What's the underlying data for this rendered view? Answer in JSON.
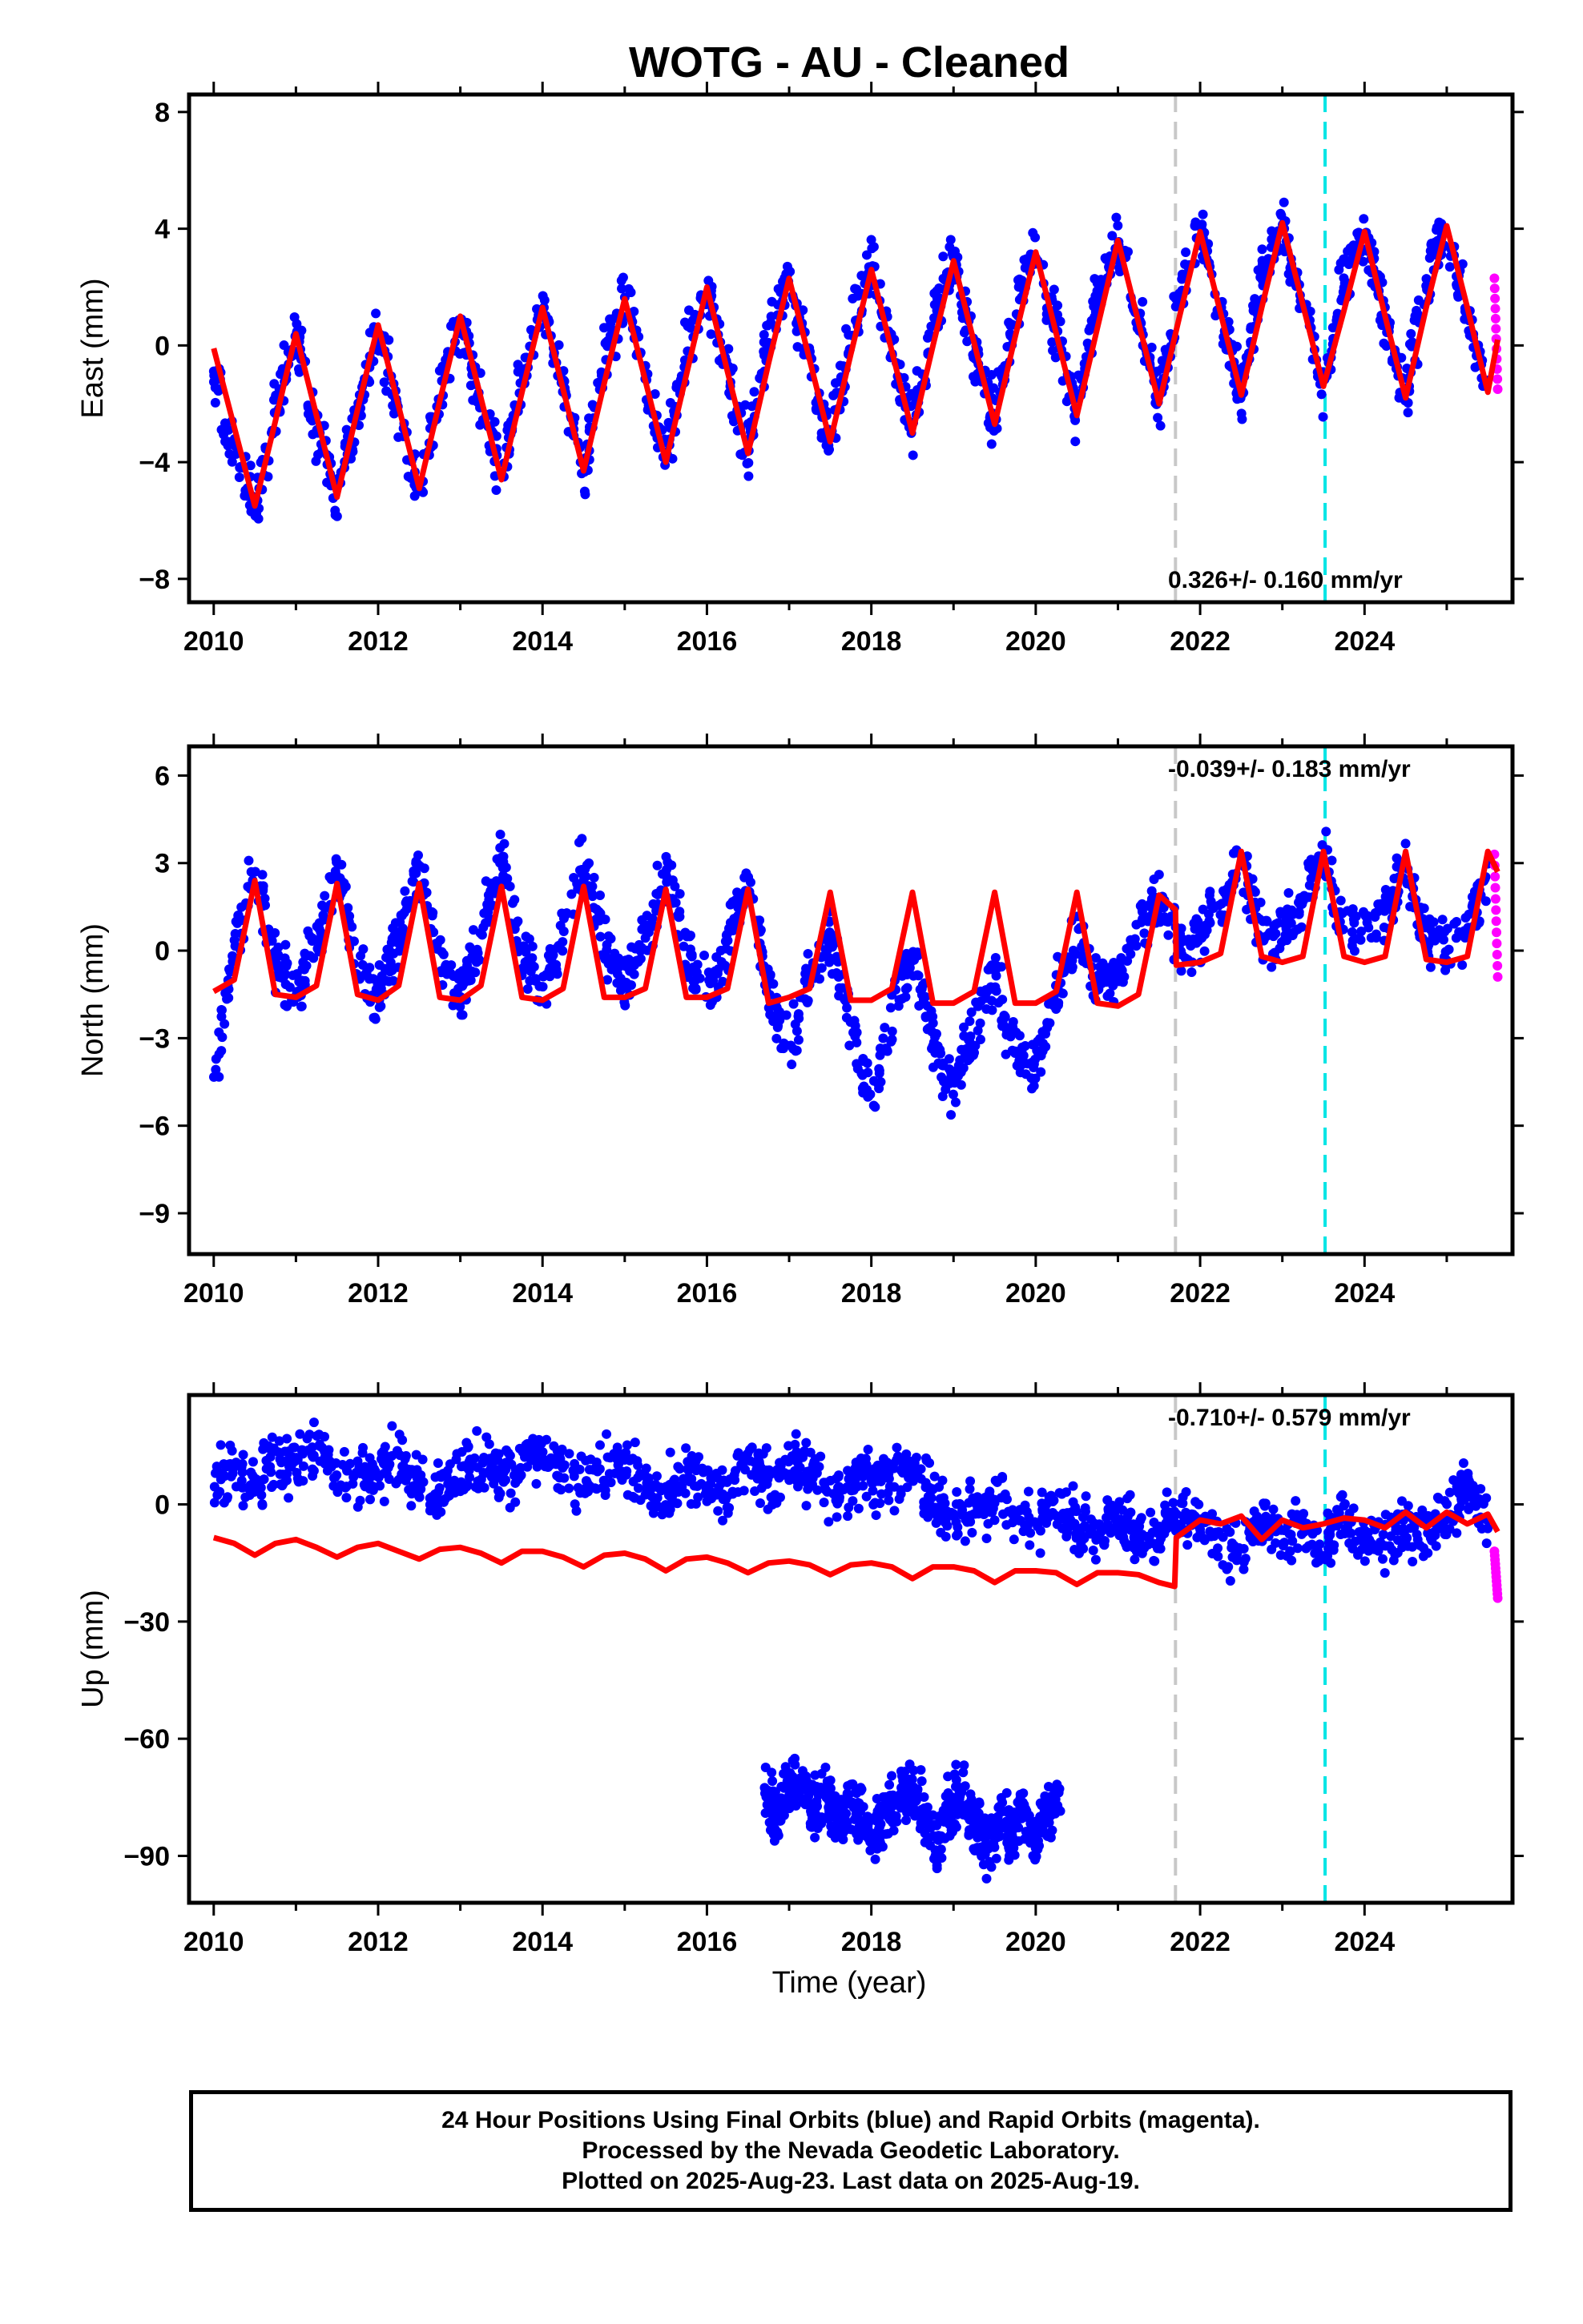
{
  "title": "WOTG  - AU - Cleaned",
  "x_axis": {
    "label": "Time (year)",
    "range": [
      2009.7,
      2025.8
    ],
    "ticks": [
      2010,
      2012,
      2014,
      2016,
      2018,
      2020,
      2022,
      2024
    ],
    "tick_labels": [
      "2010",
      "2012",
      "2014",
      "2016",
      "2018",
      "2020",
      "2022",
      "2024"
    ]
  },
  "colors": {
    "final_orbits": "#0000ff",
    "rapid_orbits": "#ff00ff",
    "model": "#ff0000",
    "gray_line": "#c8c8c8",
    "cyan_line": "#00e5e5"
  },
  "footer": {
    "line1": "24 Hour Positions Using Final Orbits (blue) and Rapid Orbits (magenta).",
    "line2": "Processed by the Nevada Geodetic Laboratory.",
    "line3": "Plotted on 2025-Aug-23. Last data on 2025-Aug-19."
  },
  "chart_data": [
    {
      "type": "scatter",
      "panel": "east",
      "ylabel": "East (mm)",
      "ylim": [
        -8.8,
        8.6
      ],
      "yticks": [
        -8,
        -4,
        0,
        4,
        8
      ],
      "ytick_labels": [
        "−8",
        "−4",
        "0",
        "4",
        "8"
      ],
      "rate_text": "0.326+/- 0.160 mm/yr",
      "rate_position": "bottom-right",
      "vertical_lines": [
        {
          "x": 2021.7,
          "color": "gray"
        },
        {
          "x": 2023.52,
          "color": "cyan"
        }
      ],
      "series": [
        {
          "role": "final_orbits",
          "x": [
            2010.0,
            2010.25,
            2010.5,
            2010.75,
            2011.0,
            2011.25,
            2011.5,
            2011.75,
            2012.0,
            2012.25,
            2012.5,
            2012.75,
            2013.0,
            2013.25,
            2013.5,
            2013.75,
            2014.0,
            2014.25,
            2014.5,
            2014.75,
            2015.0,
            2015.25,
            2015.5,
            2015.75,
            2016.0,
            2016.25,
            2016.5,
            2016.75,
            2017.0,
            2017.25,
            2017.5,
            2017.75,
            2018.0,
            2018.25,
            2018.5,
            2018.75,
            2019.0,
            2019.25,
            2019.5,
            2019.75,
            2020.0,
            2020.25,
            2020.5,
            2020.75,
            2021.0,
            2021.25,
            2021.5,
            2021.75,
            2022.0,
            2022.25,
            2022.5,
            2022.75,
            2023.0,
            2023.25,
            2023.5,
            2023.75,
            2024.0,
            2024.25,
            2024.5,
            2024.75,
            2025.0,
            2025.25,
            2025.5
          ],
          "y": [
            -0.8,
            -3.9,
            -5.6,
            -2.3,
            0.4,
            -2.8,
            -5.2,
            -1.9,
            0.6,
            -2.6,
            -4.9,
            -1.6,
            1.0,
            -2.1,
            -4.6,
            -1.0,
            1.4,
            -1.6,
            -4.3,
            -0.6,
            1.7,
            -1.3,
            -3.9,
            -0.2,
            2.0,
            -0.9,
            -3.6,
            0.3,
            2.3,
            -0.7,
            -3.3,
            0.6,
            2.7,
            -0.4,
            -2.9,
            1.0,
            3.0,
            -0.1,
            -2.7,
            1.4,
            3.3,
            0.5,
            -2.3,
            1.7,
            3.6,
            0.9,
            -2.0,
            2.0,
            3.9,
            1.1,
            -1.8,
            2.3,
            4.2,
            1.4,
            -1.6,
            2.3,
            3.8,
            1.1,
            -1.9,
            2.5,
            4.1,
            1.0,
            -1.5
          ]
        },
        {
          "role": "rapid_orbits",
          "x": [
            2025.58,
            2025.6,
            2025.62
          ],
          "y": [
            2.3,
            0.5,
            -1.5
          ]
        },
        {
          "role": "model",
          "x": [
            2010.0,
            2010.25,
            2010.5,
            2010.75,
            2011.0,
            2011.25,
            2011.5,
            2011.75,
            2012.0,
            2012.25,
            2012.5,
            2012.75,
            2013.0,
            2013.25,
            2013.5,
            2013.75,
            2014.0,
            2014.25,
            2014.5,
            2014.75,
            2015.0,
            2015.25,
            2015.5,
            2015.75,
            2016.0,
            2016.25,
            2016.5,
            2016.75,
            2017.0,
            2017.25,
            2017.5,
            2017.75,
            2018.0,
            2018.25,
            2018.5,
            2018.75,
            2019.0,
            2019.25,
            2019.5,
            2019.75,
            2020.0,
            2020.25,
            2020.5,
            2020.75,
            2021.0,
            2021.25,
            2021.5,
            2021.75,
            2022.0,
            2022.25,
            2022.5,
            2022.75,
            2023.0,
            2023.25,
            2023.5,
            2023.75,
            2024.0,
            2024.25,
            2024.5,
            2024.75,
            2025.0,
            2025.25,
            2025.5,
            2025.62
          ],
          "y": [
            -0.1,
            -2.8,
            -5.5,
            -2.6,
            0.4,
            -2.4,
            -5.2,
            -2.2,
            0.7,
            -2.1,
            -4.9,
            -1.9,
            1.0,
            -1.8,
            -4.6,
            -1.6,
            1.3,
            -1.5,
            -4.3,
            -1.3,
            1.6,
            -1.2,
            -4.0,
            -1.0,
            2.0,
            -0.9,
            -3.7,
            -0.6,
            2.3,
            -0.5,
            -3.3,
            -0.3,
            2.6,
            -0.2,
            -3.0,
            0.0,
            2.9,
            0.1,
            -2.7,
            0.3,
            3.2,
            0.4,
            -2.4,
            0.6,
            3.6,
            0.8,
            -2.0,
            1.0,
            3.9,
            1.1,
            -1.7,
            1.3,
            4.2,
            1.4,
            -1.4,
            1.2,
            3.9,
            1.0,
            -1.8,
            1.3,
            4.1,
            1.3,
            -1.6,
            0.2
          ]
        }
      ]
    },
    {
      "type": "scatter",
      "panel": "north",
      "ylabel": "North (mm)",
      "ylim": [
        -10.4,
        7.0
      ],
      "yticks": [
        -9,
        -6,
        -3,
        0,
        3,
        6
      ],
      "ytick_labels": [
        "−9",
        "−6",
        "−3",
        "0",
        "3",
        "6"
      ],
      "rate_text": "-0.039+/- 0.183 mm/yr",
      "rate_position": "top-right",
      "vertical_lines": [
        {
          "x": 2021.7,
          "color": "gray"
        },
        {
          "x": 2023.52,
          "color": "cyan"
        }
      ],
      "series": [
        {
          "role": "final_orbits",
          "x": [
            2010.0,
            2010.25,
            2010.5,
            2010.75,
            2011.0,
            2011.25,
            2011.5,
            2011.75,
            2012.0,
            2012.25,
            2012.5,
            2012.75,
            2013.0,
            2013.25,
            2013.5,
            2013.75,
            2014.0,
            2014.25,
            2014.5,
            2014.75,
            2015.0,
            2015.25,
            2015.5,
            2015.75,
            2016.0,
            2016.25,
            2016.5,
            2016.75,
            2017.0,
            2017.25,
            2017.5,
            2017.75,
            2018.0,
            2018.25,
            2018.5,
            2018.75,
            2019.0,
            2019.25,
            2019.5,
            2019.75,
            2020.0,
            2020.25,
            2020.5,
            2020.75,
            2021.0,
            2021.25,
            2021.5,
            2021.75,
            2022.0,
            2022.25,
            2022.5,
            2022.75,
            2023.0,
            2023.25,
            2023.5,
            2023.75,
            2024.0,
            2024.25,
            2024.5,
            2024.75,
            2025.0,
            2025.25,
            2025.5
          ],
          "y": [
            -4.5,
            0.3,
            2.8,
            -0.4,
            -1.5,
            0.2,
            3.0,
            -0.5,
            -1.8,
            0.4,
            2.9,
            -0.2,
            -1.6,
            0.6,
            3.1,
            0.0,
            -1.4,
            0.7,
            3.2,
            0.1,
            -1.2,
            0.5,
            2.8,
            -0.1,
            -1.3,
            0.4,
            2.6,
            -1.5,
            -3.5,
            -1.0,
            0.5,
            -2.5,
            -5.5,
            -2.0,
            0.0,
            -3.0,
            -4.8,
            -2.5,
            -1.0,
            -3.5,
            -4.0,
            -1.5,
            0.5,
            -1.0,
            -1.0,
            0.8,
            2.0,
            0.0,
            0.5,
            1.5,
            3.0,
            0.5,
            0.8,
            1.5,
            3.5,
            0.7,
            0.5,
            1.2,
            3.0,
            0.4,
            0.2,
            1.0,
            2.8
          ]
        },
        {
          "role": "rapid_orbits",
          "x": [
            2025.58,
            2025.6,
            2025.62
          ],
          "y": [
            3.3,
            1.0,
            -0.9
          ]
        },
        {
          "role": "model",
          "x": [
            2010.0,
            2010.25,
            2010.5,
            2010.75,
            2011.0,
            2011.25,
            2011.5,
            2011.75,
            2012.0,
            2012.25,
            2012.5,
            2012.75,
            2013.0,
            2013.25,
            2013.5,
            2013.75,
            2014.0,
            2014.25,
            2014.5,
            2014.75,
            2015.0,
            2015.25,
            2015.5,
            2015.75,
            2016.0,
            2016.25,
            2016.5,
            2016.75,
            2017.0,
            2017.25,
            2017.5,
            2017.75,
            2018.0,
            2018.25,
            2018.5,
            2018.75,
            2019.0,
            2019.25,
            2019.5,
            2019.75,
            2020.0,
            2020.25,
            2020.5,
            2020.75,
            2021.0,
            2021.25,
            2021.5,
            2021.7,
            2021.71,
            2022.0,
            2022.25,
            2022.5,
            2022.75,
            2023.0,
            2023.25,
            2023.5,
            2023.75,
            2024.0,
            2024.25,
            2024.5,
            2024.75,
            2025.0,
            2025.25,
            2025.5,
            2025.62
          ],
          "y": [
            -1.4,
            -1.0,
            2.4,
            -1.5,
            -1.6,
            -1.2,
            2.3,
            -1.5,
            -1.7,
            -1.2,
            2.3,
            -1.6,
            -1.7,
            -1.2,
            2.2,
            -1.6,
            -1.7,
            -1.3,
            2.2,
            -1.6,
            -1.6,
            -1.3,
            2.1,
            -1.6,
            -1.6,
            -1.3,
            2.1,
            -1.8,
            -1.6,
            -1.3,
            2.0,
            -1.7,
            -1.7,
            -1.3,
            2.0,
            -1.8,
            -1.8,
            -1.4,
            2.0,
            -1.8,
            -1.8,
            -1.4,
            2.0,
            -1.8,
            -1.9,
            -1.5,
            1.9,
            1.4,
            -0.5,
            -0.4,
            -0.1,
            3.4,
            -0.2,
            -0.4,
            -0.2,
            3.4,
            -0.2,
            -0.4,
            -0.2,
            3.4,
            -0.3,
            -0.4,
            -0.2,
            3.4,
            2.7
          ]
        }
      ]
    },
    {
      "type": "scatter",
      "panel": "up",
      "ylabel": "Up (mm)",
      "ylim": [
        -102,
        28
      ],
      "yticks": [
        -90,
        -60,
        -30,
        0
      ],
      "ytick_labels": [
        "−90",
        "−60",
        "−30",
        "0"
      ],
      "rate_text": "-0.710+/- 0.579 mm/yr",
      "rate_position": "top-right",
      "vertical_lines": [
        {
          "x": 2021.7,
          "color": "gray"
        },
        {
          "x": 2023.52,
          "color": "cyan"
        }
      ],
      "series": [
        {
          "role": "final_orbits",
          "x": [
            2010.0,
            2010.25,
            2010.5,
            2010.75,
            2011.0,
            2011.25,
            2011.5,
            2011.75,
            2012.0,
            2012.25,
            2012.5,
            2012.75,
            2013.0,
            2013.25,
            2013.5,
            2013.75,
            2014.0,
            2014.25,
            2014.5,
            2014.75,
            2015.0,
            2015.25,
            2015.5,
            2015.75,
            2016.0,
            2016.25,
            2016.5,
            2016.75,
            2017.0,
            2017.5,
            2018.0,
            2018.5,
            2019.0,
            2019.5,
            2020.0,
            2020.25,
            2020.5,
            2020.75,
            2021.0,
            2021.25,
            2021.5,
            2021.75,
            2022.0,
            2022.25,
            2022.5,
            2022.75,
            2023.0,
            2023.25,
            2023.5,
            2023.75,
            2024.0,
            2024.25,
            2024.5,
            2024.75,
            2025.0,
            2025.25,
            2025.5
          ],
          "y": [
            5,
            9,
            4,
            12,
            10,
            14,
            8,
            5,
            8,
            11,
            6,
            3,
            9,
            12,
            7,
            10,
            12,
            9,
            5,
            8,
            11,
            6,
            3,
            9,
            5,
            2,
            14,
            4,
            12,
            3,
            6,
            9,
            -4,
            2,
            -6,
            0,
            -5,
            -8,
            -3,
            -10,
            -7,
            -2,
            -5,
            -8,
            -12,
            -4,
            -9,
            -6,
            -10,
            -3,
            -8,
            -11,
            -5,
            -8,
            -3,
            5,
            -6
          ]
        },
        {
          "role": "final_orbits_offset",
          "x": [
            2016.7,
            2016.85,
            2017.0,
            2017.15,
            2017.3,
            2017.45,
            2017.6,
            2017.75,
            2017.9,
            2018.05,
            2018.2,
            2018.35,
            2018.5,
            2018.65,
            2018.8,
            2018.95,
            2019.1,
            2019.25,
            2019.4,
            2019.55,
            2019.7,
            2019.85,
            2020.0,
            2020.15,
            2020.3
          ],
          "y": [
            -75,
            -80,
            -70,
            -72,
            -78,
            -74,
            -82,
            -76,
            -80,
            -84,
            -78,
            -75,
            -72,
            -80,
            -86,
            -78,
            -74,
            -82,
            -88,
            -80,
            -84,
            -78,
            -86,
            -80,
            -76
          ]
        },
        {
          "role": "rapid_orbits",
          "x": [
            2025.58,
            2025.6,
            2025.62
          ],
          "y": [
            -12,
            -18,
            -24
          ]
        },
        {
          "role": "model",
          "x": [
            2010.0,
            2010.25,
            2010.5,
            2010.75,
            2011.0,
            2011.25,
            2011.5,
            2011.75,
            2012.0,
            2012.25,
            2012.5,
            2012.75,
            2013.0,
            2013.25,
            2013.5,
            2013.75,
            2014.0,
            2014.25,
            2014.5,
            2014.75,
            2015.0,
            2015.25,
            2015.5,
            2015.75,
            2016.0,
            2016.25,
            2016.5,
            2016.75,
            2017.0,
            2017.25,
            2017.5,
            2017.75,
            2018.0,
            2018.25,
            2018.5,
            2018.75,
            2019.0,
            2019.25,
            2019.5,
            2019.75,
            2020.0,
            2020.25,
            2020.5,
            2020.75,
            2021.0,
            2021.25,
            2021.5,
            2021.69,
            2021.71,
            2022.0,
            2022.25,
            2022.5,
            2022.75,
            2023.0,
            2023.25,
            2023.5,
            2023.75,
            2024.0,
            2024.25,
            2024.5,
            2024.75,
            2025.0,
            2025.25,
            2025.5,
            2025.62
          ],
          "y": [
            -8.5,
            -10,
            -13,
            -10,
            -9,
            -11,
            -13.5,
            -11,
            -10,
            -12,
            -14,
            -11.5,
            -11,
            -12.5,
            -15,
            -12,
            -12,
            -13.5,
            -16,
            -13,
            -12.5,
            -14,
            -17,
            -14,
            -13.5,
            -15,
            -17.5,
            -15,
            -14.5,
            -15.5,
            -18,
            -15.5,
            -15,
            -16,
            -19,
            -16,
            -16,
            -17,
            -20,
            -17,
            -17,
            -17.5,
            -20.5,
            -17.5,
            -17.5,
            -18,
            -20,
            -21,
            -8.5,
            -4,
            -5,
            -3,
            -9,
            -4,
            -6,
            -5,
            -3.5,
            -4,
            -6,
            -2,
            -6,
            -2,
            -5,
            -2.5,
            -7
          ]
        }
      ]
    }
  ]
}
